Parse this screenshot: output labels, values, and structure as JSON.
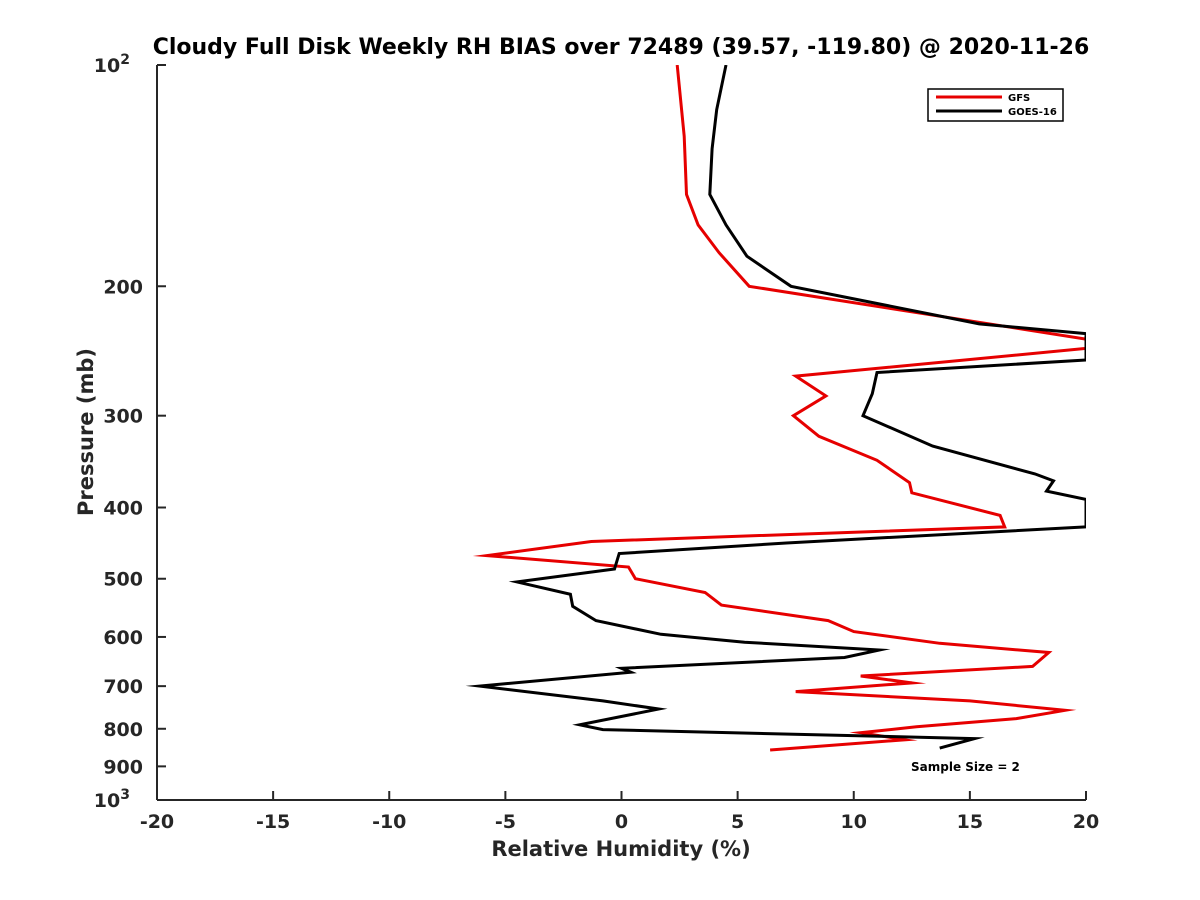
{
  "chart_data": {
    "type": "line",
    "title": "Cloudy Full Disk Weekly RH BIAS over 72489 (39.57, -119.80) @ 2020-11-26",
    "xlabel": "Relative Humidity (%)",
    "ylabel": "Pressure (mb)",
    "xlim": [
      -20,
      20
    ],
    "ylim": [
      100,
      1000
    ],
    "y_scale": "log",
    "y_reversed": true,
    "grid": false,
    "x_ticks": [
      -20,
      -15,
      -10,
      -5,
      0,
      5,
      10,
      15,
      20
    ],
    "x_tick_labels": [
      "-20",
      "-15",
      "-10",
      "-5",
      "0",
      "5",
      "10",
      "15",
      "20"
    ],
    "y_ticks": [
      {
        "value": 100,
        "label": "10",
        "exponent": "2"
      },
      {
        "value": 200,
        "label": "200",
        "exponent": ""
      },
      {
        "value": 300,
        "label": "300",
        "exponent": ""
      },
      {
        "value": 400,
        "label": "400",
        "exponent": ""
      },
      {
        "value": 500,
        "label": "500",
        "exponent": ""
      },
      {
        "value": 600,
        "label": "600",
        "exponent": ""
      },
      {
        "value": 700,
        "label": "700",
        "exponent": ""
      },
      {
        "value": 800,
        "label": "800",
        "exponent": ""
      },
      {
        "value": 900,
        "label": "900",
        "exponent": ""
      },
      {
        "value": 1000,
        "label": "10",
        "exponent": "3"
      }
    ],
    "legend_position": "top-right",
    "annotation": "Sample Size = 2",
    "series": [
      {
        "name": "GFS",
        "color": "#e60000",
        "points": [
          [
            2.4,
            100
          ],
          [
            2.7,
            125
          ],
          [
            2.8,
            150
          ],
          [
            3.3,
            165
          ],
          [
            4.2,
            180
          ],
          [
            5.5,
            200
          ],
          [
            20,
            236
          ],
          [
            20,
            243
          ],
          [
            7.5,
            265
          ],
          [
            8.8,
            282
          ],
          [
            7.4,
            300
          ],
          [
            8.5,
            320
          ],
          [
            11,
            345
          ],
          [
            12.4,
            370
          ],
          [
            12.5,
            382
          ],
          [
            16.3,
            410
          ],
          [
            16.5,
            425
          ],
          [
            -1.3,
            445
          ],
          [
            -5.8,
            465
          ],
          [
            0.3,
            482
          ],
          [
            0.6,
            500
          ],
          [
            3.6,
            522
          ],
          [
            4.3,
            543
          ],
          [
            8.9,
            570
          ],
          [
            10,
            590
          ],
          [
            13.7,
            612
          ],
          [
            18.4,
            630
          ],
          [
            17.7,
            658
          ],
          [
            10.3,
            678
          ],
          [
            12.5,
            693
          ],
          [
            7.5,
            712
          ],
          [
            15,
            733
          ],
          [
            19.1,
            755
          ],
          [
            17,
            775
          ],
          [
            12.7,
            795
          ],
          [
            10.3,
            810
          ],
          [
            12.2,
            828
          ],
          [
            6.4,
            855
          ]
        ]
      },
      {
        "name": "GOES-16",
        "color": "#000000",
        "points": [
          [
            4.5,
            100
          ],
          [
            4.1,
            115
          ],
          [
            3.9,
            130
          ],
          [
            3.8,
            150
          ],
          [
            4.5,
            165
          ],
          [
            5.4,
            182
          ],
          [
            7.3,
            200
          ],
          [
            15.4,
            225
          ],
          [
            20,
            232
          ],
          [
            20,
            252
          ],
          [
            11,
            262
          ],
          [
            10.8,
            280
          ],
          [
            10.4,
            300
          ],
          [
            13.4,
            330
          ],
          [
            17.8,
            360
          ],
          [
            18.6,
            368
          ],
          [
            18.3,
            380
          ],
          [
            20,
            390
          ],
          [
            20,
            425
          ],
          [
            7.1,
            447
          ],
          [
            -0.1,
            462
          ],
          [
            -0.3,
            485
          ],
          [
            -4.5,
            505
          ],
          [
            -2.2,
            525
          ],
          [
            -2.1,
            545
          ],
          [
            -1.1,
            570
          ],
          [
            1.7,
            595
          ],
          [
            5.3,
            610
          ],
          [
            11.1,
            625
          ],
          [
            9.6,
            640
          ],
          [
            0,
            662
          ],
          [
            0.4,
            670
          ],
          [
            -6.1,
            700
          ],
          [
            -0.8,
            733
          ],
          [
            1.6,
            752
          ],
          [
            -1.8,
            790
          ],
          [
            -0.8,
            802
          ],
          [
            15.2,
            825
          ],
          [
            13.7,
            850
          ]
        ]
      }
    ]
  }
}
